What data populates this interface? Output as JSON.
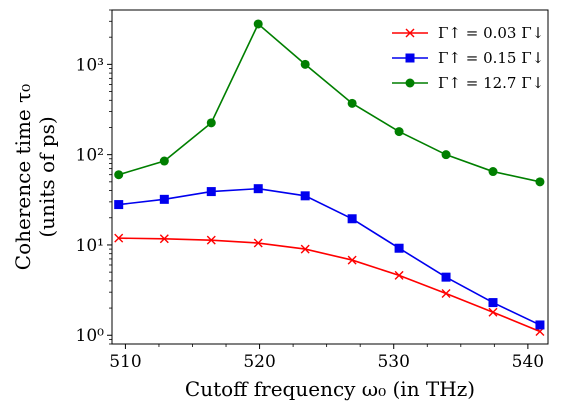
{
  "chart_data": {
    "type": "line",
    "xlabel": "Cutoff frequency ω₀ (in THz)",
    "ylabel_line1": "Coherence time τ₀",
    "ylabel_line2": "(units of ps)",
    "xlim": [
      509,
      541.5
    ],
    "ylim": [
      0.8,
      4000
    ],
    "yscale": "log",
    "grid": false,
    "legend_position": "top-right",
    "x_ticks": [
      510,
      520,
      530,
      540
    ],
    "x_tick_labels": [
      "510",
      "520",
      "530",
      "540"
    ],
    "y_ticks": [
      1,
      10,
      100,
      1000
    ],
    "y_tick_labels": [
      "10⁰",
      "10¹",
      "10²",
      "10³"
    ],
    "x": [
      509.5,
      512.9,
      516.4,
      519.9,
      523.4,
      526.9,
      530.4,
      533.9,
      537.4,
      540.9
    ],
    "series": [
      {
        "name": "Γ↑ = 0.03 Γ↓",
        "color": "#ff0000",
        "marker": "x",
        "values": [
          11.9,
          11.7,
          11.3,
          10.5,
          9.0,
          6.8,
          4.6,
          2.9,
          1.8,
          1.1
        ]
      },
      {
        "name": "Γ↑ = 0.15 Γ↓",
        "color": "#0000ee",
        "marker": "square",
        "values": [
          28,
          32,
          39,
          42,
          35,
          19.5,
          9.2,
          4.4,
          2.3,
          1.3
        ]
      },
      {
        "name": "Γ↑ = 12.7 Γ↓",
        "color": "#007f00",
        "marker": "circle",
        "values": [
          60,
          85,
          225,
          2800,
          1000,
          370,
          180,
          100,
          65,
          50
        ]
      }
    ]
  }
}
